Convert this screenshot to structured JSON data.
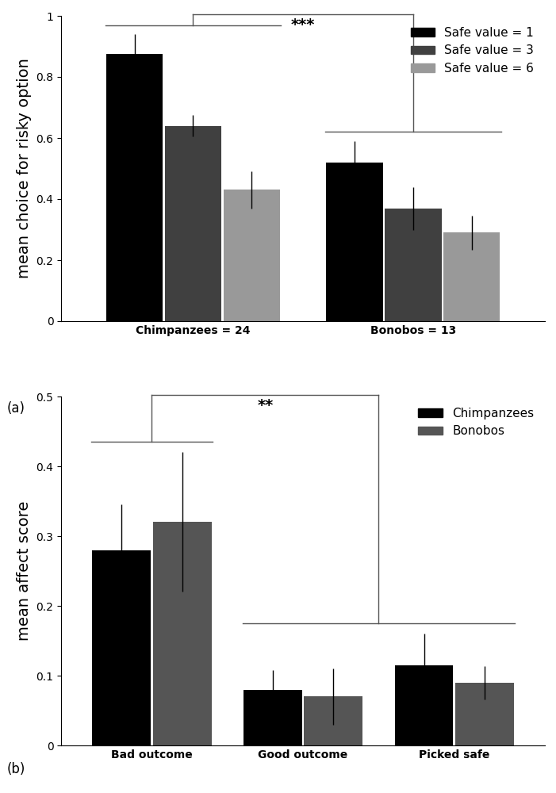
{
  "chart_data": [
    {
      "type": "bar",
      "panel_label": "(a)",
      "y_label": "mean choice for risky option",
      "categories": [
        "Chimpanzees = 24",
        "Bonobos = 13"
      ],
      "series": [
        {
          "name": "Safe value = 1",
          "color": "#000000",
          "values": [
            0.875,
            0.52
          ],
          "errors": [
            0.065,
            0.07
          ]
        },
        {
          "name": "Safe value = 3",
          "color": "#404040",
          "values": [
            0.64,
            0.37
          ],
          "errors": [
            0.035,
            0.07
          ]
        },
        {
          "name": "Safe value = 6",
          "color": "#999999",
          "values": [
            0.43,
            0.29
          ],
          "errors": [
            0.06,
            0.055
          ]
        }
      ],
      "ylim": [
        0,
        1
      ],
      "yticks": [
        0,
        0.2,
        0.4,
        0.6,
        0.8,
        1
      ],
      "legend": "upper right",
      "annotations": [
        "***"
      ]
    },
    {
      "type": "bar",
      "panel_label": "(b)",
      "y_label": "mean affect score",
      "categories": [
        "Bad outcome",
        "Good outcome",
        "Picked safe"
      ],
      "series": [
        {
          "name": "Chimpanzees",
          "color": "#000000",
          "values": [
            0.28,
            0.08,
            0.115
          ],
          "errors": [
            0.065,
            0.028,
            0.045
          ]
        },
        {
          "name": "Bonobos",
          "color": "#555555",
          "values": [
            0.32,
            0.07,
            0.09
          ],
          "errors": [
            0.1,
            0.04,
            0.024
          ]
        }
      ],
      "ylim": [
        0,
        0.5
      ],
      "yticks": [
        0,
        0.1,
        0.2,
        0.3,
        0.4,
        0.5
      ],
      "legend": "upper right",
      "annotations": [
        "**"
      ]
    }
  ]
}
